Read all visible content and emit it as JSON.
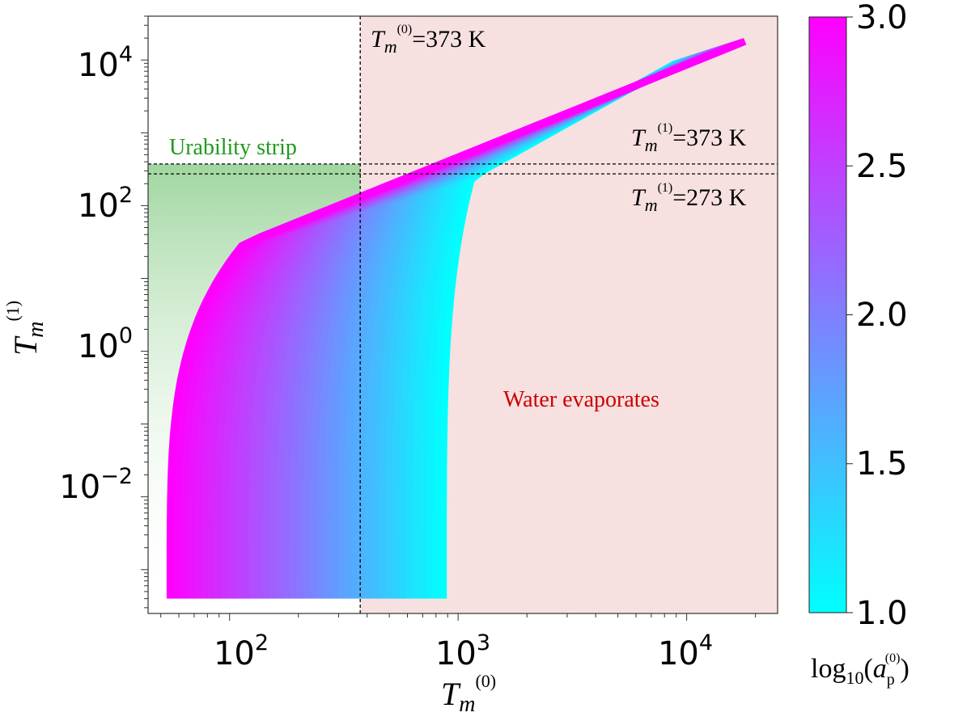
{
  "chart_data": {
    "type": "scatter",
    "x_scale": "log",
    "y_scale": "log",
    "xlabel": {
      "symbol": "T",
      "sub": "m",
      "sup": "(0)"
    },
    "ylabel": {
      "symbol": "T",
      "sub": "m",
      "sup": "(1)"
    },
    "xlim": [
      44,
      25000
    ],
    "ylim": [
      0.00025,
      40000
    ],
    "x_ticks": [
      {
        "value": 100,
        "base": "10",
        "exp": "2"
      },
      {
        "value": 1000,
        "base": "10",
        "exp": "3"
      },
      {
        "value": 10000,
        "base": "10",
        "exp": "4"
      }
    ],
    "y_ticks": [
      {
        "value": 0.01,
        "base": "10",
        "exp": "−2"
      },
      {
        "value": 1,
        "base": "10",
        "exp": "0"
      },
      {
        "value": 100,
        "base": "10",
        "exp": "2"
      },
      {
        "value": 10000,
        "base": "10",
        "exp": "4"
      }
    ],
    "reference_lines": [
      {
        "axis": "x",
        "value": 373,
        "label_symbol": "T",
        "label_sub": "m",
        "label_sup": "(0)",
        "label_value": "=373 K"
      },
      {
        "axis": "y",
        "value": 373,
        "label_symbol": "T",
        "label_sub": "m",
        "label_sup": "(1)",
        "label_value": "=373 K"
      },
      {
        "axis": "y",
        "value": 273,
        "label_symbol": "T",
        "label_sub": "m",
        "label_sup": "(1)",
        "label_value": "=273 K"
      }
    ],
    "regions": [
      {
        "name": "urability-strip",
        "label": "Urability strip",
        "color": "#1f9a1f",
        "x_range": [
          44,
          373
        ],
        "y_range": [
          0.00025,
          373
        ]
      },
      {
        "name": "water-evaporates",
        "label": "Water evaporates",
        "color": "#cc0000",
        "x_range": [
          373,
          25000
        ],
        "y_range": [
          0.00025,
          40000
        ]
      }
    ],
    "series_curves": {
      "log10_a_p_range": [
        1.0,
        3.0
      ],
      "low_a_curve": {
        "log10_a_p": 1.0,
        "base_x": 860,
        "knee_y": 250,
        "knee_x": 1150,
        "end_x": 8900,
        "end_y": 8900
      },
      "high_a_curve": {
        "log10_a_p": 3.0,
        "base_x": 55,
        "knee_y": 30,
        "knee_x": 115,
        "end_x": 18000,
        "end_y": 18000
      },
      "y_floor": 0.0004
    },
    "colorbar": {
      "label_base": "log",
      "label_sub": "10",
      "label_var": "a",
      "label_var_sub": "p",
      "label_var_sup": "(0)",
      "min": 1.0,
      "max": 3.0,
      "min_color": "#00ffff",
      "max_color": "#ff00ff",
      "ticks": [
        "1.0",
        "1.5",
        "2.0",
        "2.5",
        "3.0"
      ]
    }
  }
}
